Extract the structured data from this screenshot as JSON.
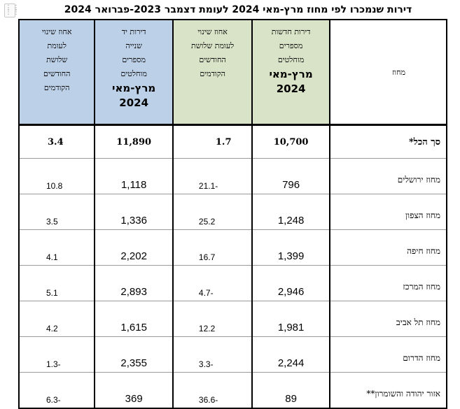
{
  "title": "דירות שנמכרו לפי מחוז מרץ-מאי  2024 לעומת דצמבר 2023-פברואר 2024",
  "grip_icon": "drag-handle-icon",
  "colors": {
    "green_header": "#d9e3c7",
    "blue_header": "#bcd0e8"
  },
  "headers": {
    "region": "מחוז",
    "new_line1": "דירות חדשות",
    "new_line2": "מספרים",
    "new_line3": "מוחלטים",
    "new_period": "מרץ-מאי",
    "new_year": "2024",
    "new_pct_line1": "אחוז שינוי",
    "new_pct_line2": "לעומת שלושת",
    "new_pct_line3": "החודשים",
    "new_pct_line4": "הקודמים",
    "used_line1": "דירות יד",
    "used_line2": "שנייה",
    "used_line3": "מספרים",
    "used_line4": "מוחלטים",
    "used_period": "מרץ-מאי",
    "used_year": "2024",
    "used_pct_line1": "אחוז שינוי",
    "used_pct_line2": "לעומת",
    "used_pct_line3": "שלושת",
    "used_pct_line4": "החודשים",
    "used_pct_line5": "הקודמים"
  },
  "rows": [
    {
      "region": "סך הכל*",
      "new": "10,700",
      "new_pct": "1.7",
      "used": "11,890",
      "used_pct": "3.4"
    },
    {
      "region": "מחוז ירושלים",
      "new": "796",
      "new_pct": "21.1-",
      "used": "1,118",
      "used_pct": "10.8"
    },
    {
      "region": "מחוז הצפון",
      "new": "1,248",
      "new_pct": "25.2",
      "used": "1,336",
      "used_pct": "3.5"
    },
    {
      "region": "מחוז חיפה",
      "new": "1,399",
      "new_pct": "16.7",
      "used": "2,202",
      "used_pct": "4.1"
    },
    {
      "region": "מחוז המרכז",
      "new": "2,946",
      "new_pct": "4.7-",
      "used": "2,893",
      "used_pct": "5.1"
    },
    {
      "region": "מחוז תל אביב",
      "new": "1,981",
      "new_pct": "12.2",
      "used": "1,615",
      "used_pct": "4.2"
    },
    {
      "region": "מחוז הדרום",
      "new": "2,244",
      "new_pct": "3.3-",
      "used": "2,355",
      "used_pct": "1.3-"
    },
    {
      "region": "אזור יהודה והשומרון**",
      "new": "89",
      "new_pct": "36.6-",
      "used": "369",
      "used_pct": "6.3-"
    }
  ]
}
